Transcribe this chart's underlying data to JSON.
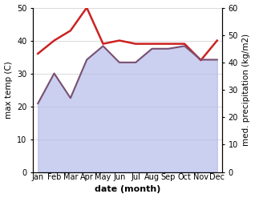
{
  "months": [
    "Jan",
    "Feb",
    "Mar",
    "Apr",
    "May",
    "Jun",
    "Jul",
    "Aug",
    "Sep",
    "Oct",
    "Nov",
    "Dec"
  ],
  "max_temp": [
    36,
    40,
    43,
    50,
    39,
    40,
    39,
    39,
    39,
    39,
    34,
    40
  ],
  "med_precip": [
    25,
    36,
    27,
    41,
    46,
    40,
    40,
    45,
    45,
    46,
    41,
    41
  ],
  "temp_color": "#cc2222",
  "precip_color": "#7a5070",
  "fill_color": "#b0b8e8",
  "fill_alpha": 0.65,
  "temp_ylim": [
    0,
    50
  ],
  "precip_ylim": [
    0,
    60
  ],
  "temp_yticks": [
    0,
    10,
    20,
    30,
    40,
    50
  ],
  "precip_yticks": [
    0,
    10,
    20,
    30,
    40,
    50,
    60
  ],
  "xlabel": "date (month)",
  "ylabel_left": "max temp (C)",
  "ylabel_right": "med. precipitation (kg/m2)",
  "xlabel_fontsize": 8,
  "ylabel_fontsize": 7.5,
  "tick_fontsize": 7,
  "linewidth_temp": 1.8,
  "linewidth_precip": 1.5
}
